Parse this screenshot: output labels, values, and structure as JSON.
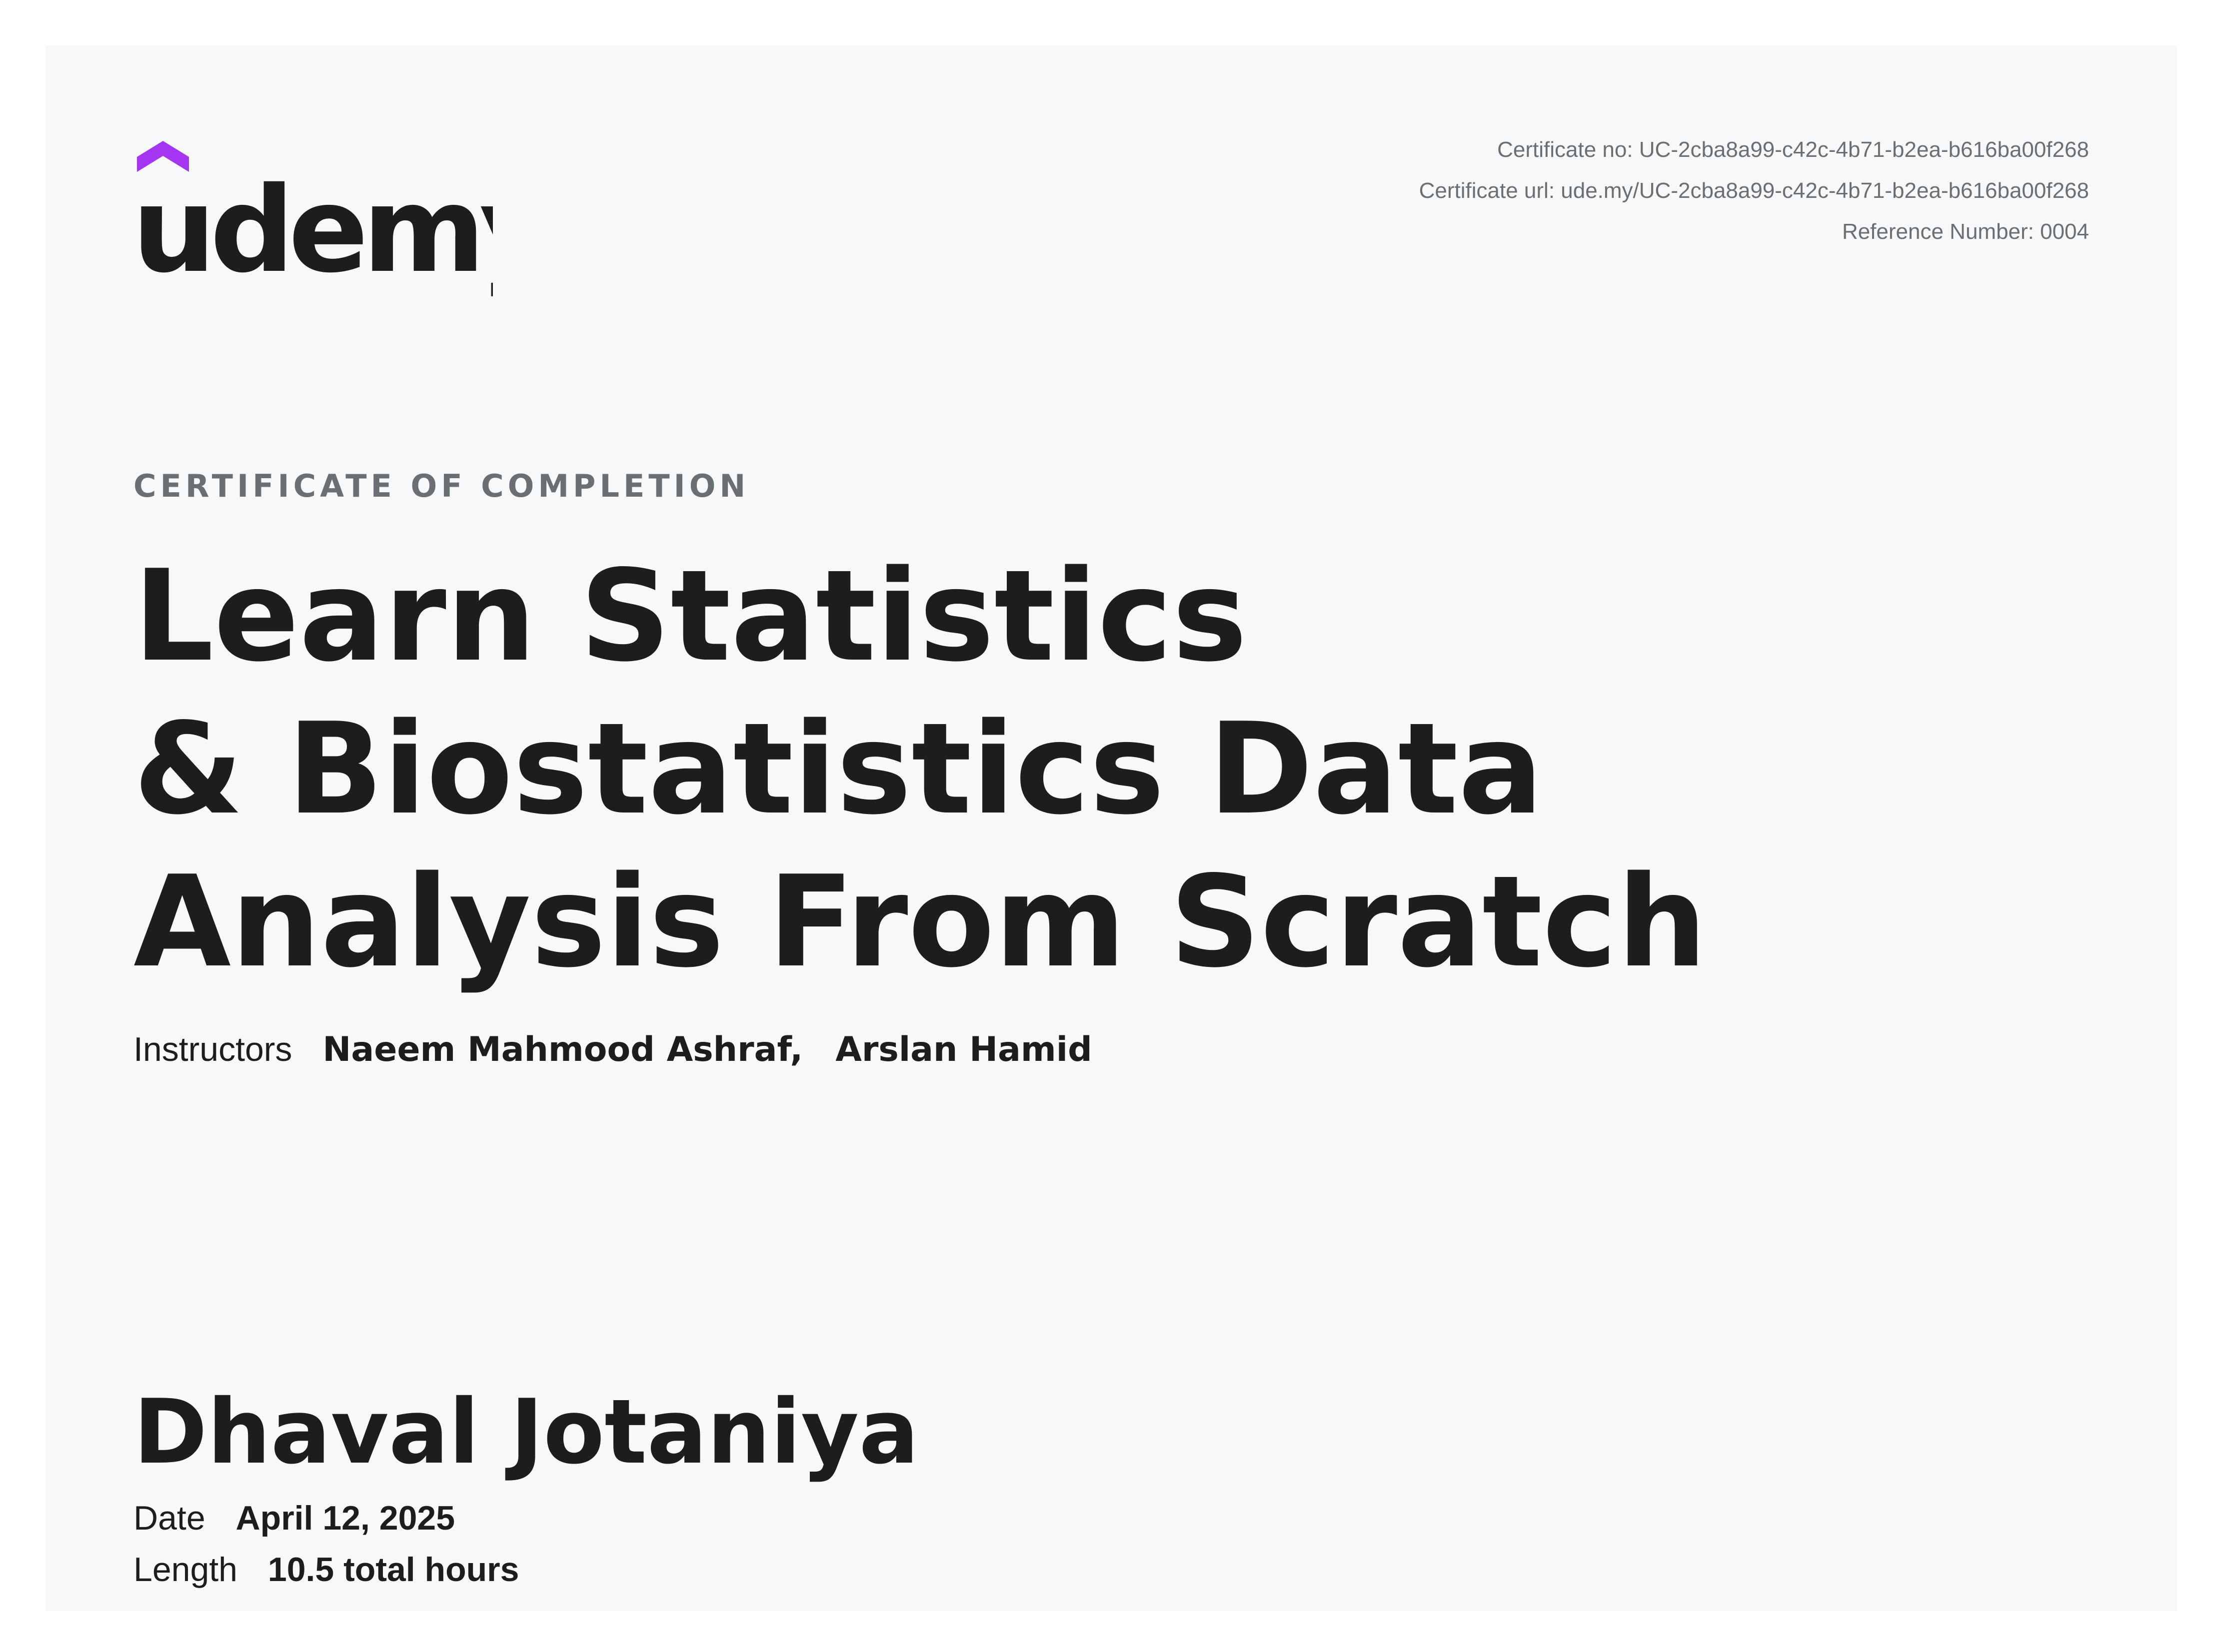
{
  "brand": {
    "name": "udemy",
    "accent_color": "#a435f0",
    "text_color": "#1c1d1f"
  },
  "certificate": {
    "number_line": "Certificate no: UC-2cba8a99-c42c-4b71-b2ea-b616ba00f268",
    "url_line": "Certificate url: ude.my/UC-2cba8a99-c42c-4b71-b2ea-b616ba00f268",
    "reference_line": "Reference Number: 0004",
    "kicker": "CERTIFICATE OF COMPLETION",
    "course_title_lines": [
      "Learn Statistics",
      "& Biostatistics Data",
      "Analysis From Scratch"
    ],
    "instructors_label": "Instructors",
    "instructors": [
      "Naeem Mahmood Ashraf,",
      "Arslan Hamid"
    ],
    "recipient": "Dhaval Jotaniya",
    "date_label": "Date",
    "date_value": "April 12, 2025",
    "length_label": "Length",
    "length_value": "10.5 total hours"
  }
}
